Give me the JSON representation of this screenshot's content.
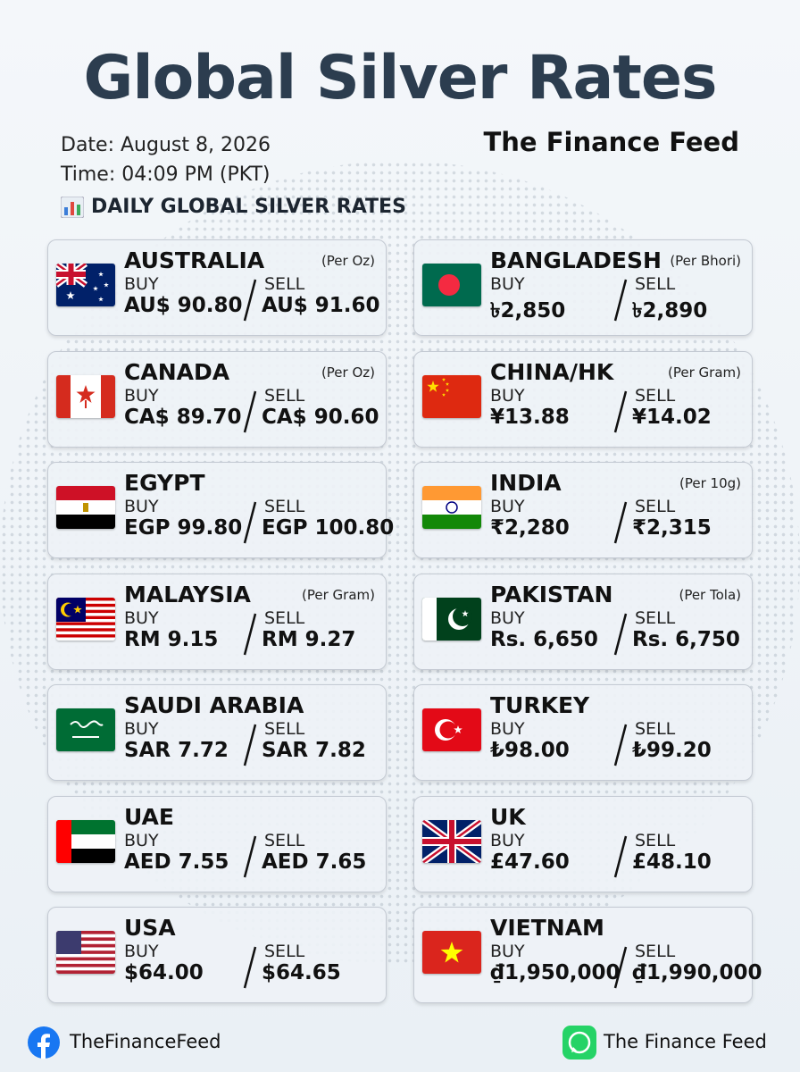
{
  "header": {
    "title": "Global Silver Rates",
    "date": "Date: August 8, 2026",
    "time": "Time: 04:09 PM (PKT)",
    "brand": "The Finance Feed",
    "section": "DAILY GLOBAL SILVER RATES"
  },
  "cards": [
    {
      "country": "AUSTRALIA",
      "unit": "(Per Oz)",
      "buy_label": "BUY",
      "buy": "AU$ 90.80",
      "sell_label": "SELL",
      "sell": "AU$ 91.60"
    },
    {
      "country": "BANGLADESH",
      "unit": "(Per Bhori)",
      "buy_label": "BUY",
      "buy": "৳2,850",
      "sell_label": "SELL",
      "sell": "৳2,890"
    },
    {
      "country": "CANADA",
      "unit": "(Per Oz)",
      "buy_label": "BUY",
      "buy": "CA$ 89.70",
      "sell_label": "SELL",
      "sell": "CA$ 90.60"
    },
    {
      "country": "CHINA/HK",
      "unit": "(Per Gram)",
      "buy_label": "BUY",
      "buy": "¥13.88",
      "sell_label": "SELL",
      "sell": "¥14.02"
    },
    {
      "country": "EGYPT",
      "buy_label": "BUY",
      "buy": "EGP 99.80",
      "sell_label": "SELL",
      "sell": "EGP 100.80"
    },
    {
      "country": "INDIA",
      "unit": "(Per 10g)",
      "buy_label": "BUY",
      "buy": "₹2,280",
      "sell_label": "SELL",
      "sell": "₹2,315"
    },
    {
      "country": "MALAYSIA",
      "unit": "(Per Gram)",
      "buy_label": "BUY",
      "buy": "RM 9.15",
      "sell_label": "SELL",
      "sell": "RM 9.27"
    },
    {
      "country": "PAKISTAN",
      "unit": "(Per Tola)",
      "buy_label": "BUY",
      "buy": "Rs. 6,650",
      "sell_label": "SELL",
      "sell": "Rs. 6,750"
    },
    {
      "country": "SAUDI ARABIA",
      "buy_label": "BUY",
      "buy": "SAR 7.72",
      "sell_label": "SELL",
      "sell": "SAR 7.82"
    },
    {
      "country": "TURKEY",
      "buy_label": "BUY",
      "buy": "₺98.00",
      "sell_label": "SELL",
      "sell": "₺99.20"
    },
    {
      "country": "UAE",
      "buy_label": "BUY",
      "buy": "AED 7.55",
      "sell_label": "SELL",
      "sell": "AED 7.65"
    },
    {
      "country": "UK",
      "buy_label": "BUY",
      "buy": "£47.60",
      "sell_label": "SELL",
      "sell": "£48.10"
    },
    {
      "country": "USA",
      "buy_label": "BUY",
      "buy": "$64.00",
      "sell_label": "SELL",
      "sell": "$64.65"
    },
    {
      "country": "VIETNAM",
      "buy_label": "BUY",
      "buy": "₫1,950,000",
      "sell_label": "SELL",
      "sell": "₫1,990,000"
    }
  ],
  "footer": {
    "facebook": "TheFinanceFeed",
    "whatsapp": "The Finance Feed"
  }
}
